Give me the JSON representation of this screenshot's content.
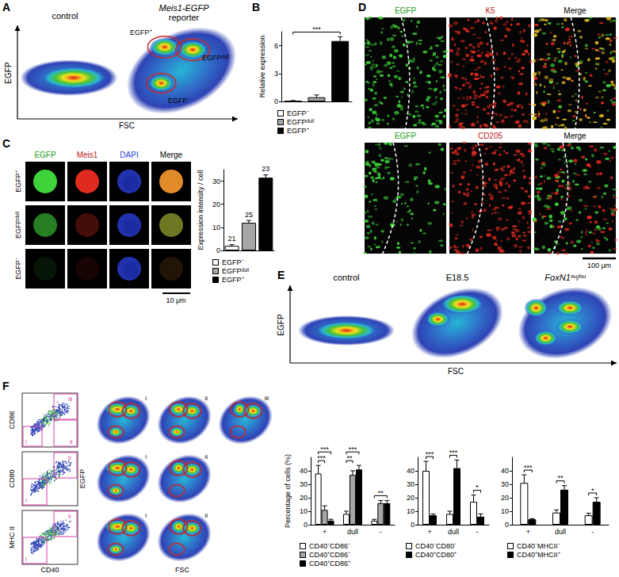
{
  "figure": {
    "panel_labels": [
      "A",
      "B",
      "C",
      "D",
      "E",
      "F"
    ],
    "A": {
      "plots": [
        "control",
        [
          "Meis1-EGFP",
          "reporter"
        ]
      ],
      "gates": [
        "EGFP⁺",
        "EGFPᵈᵘˡˡ",
        "EGFP⁻"
      ],
      "x_label": "FSC",
      "y_label": "EGFP"
    },
    "C": {
      "columns": [
        "EGFP",
        "Meis1",
        "DAPI",
        "Merge"
      ],
      "rows": [
        "EGFP⁺",
        "EGFPᵈᵘˡˡ",
        "EGFP⁻"
      ],
      "scale_bar": "10 μm"
    },
    "D": {
      "rows": [
        [
          "EGFP",
          "K5",
          "Merge"
        ],
        [
          "EGFP",
          "CD205",
          "Merge"
        ]
      ],
      "scale_bar": "100 μm"
    },
    "E": {
      "plots": [
        "control",
        "E18.5",
        "FoxN1ⁿᵘ/ⁿᵘ"
      ],
      "x_label": "FSC",
      "y_label": "EGFP"
    },
    "F": {
      "scatter_y": [
        "CD86",
        "CD80",
        "MHC II"
      ],
      "scatter_x": "CD40",
      "gates": [
        [
          "i",
          "ii",
          "iii"
        ],
        [
          "i",
          "ii"
        ],
        [
          "i",
          "ii"
        ]
      ],
      "x_label": "FSC",
      "y_label": "EGFP"
    }
  },
  "chart_data": [
    {
      "type": "bar",
      "categories": [
        "EGFP⁻",
        "EGFPᵈᵘˡˡ",
        "EGFP⁺"
      ],
      "values": [
        0.05,
        0.45,
        6.5
      ],
      "errors": [
        0.05,
        0.25,
        0.45
      ],
      "colors": [
        "#ffffff",
        "#a6a6a6",
        "#000000"
      ],
      "ylim": [
        0,
        7.5
      ],
      "yticks": [
        0,
        3,
        6
      ],
      "y_label": "Relative expression",
      "tick_labels": "y",
      "legend": "bottom",
      "grid": false,
      "significance": [
        {
          "pair": [
            "EGFP⁻",
            "EGFP⁺"
          ],
          "label": "***"
        }
      ]
    },
    {
      "type": "bar",
      "categories": [
        "EGFP⁻",
        "EGFPᵈᵘˡˡ",
        "EGFP⁺"
      ],
      "values": [
        2,
        12,
        31.5
      ],
      "errors": [
        0.5,
        1,
        1.2
      ],
      "cell_counts": [
        21,
        25,
        23
      ],
      "colors": [
        "#ffffff",
        "#a6a6a6",
        "#000000"
      ],
      "ylim": [
        0,
        35
      ],
      "yticks": [
        0,
        10,
        20,
        30
      ],
      "y_label": "Expression intensity / cell",
      "tick_labels": "y",
      "legend": "bottom",
      "grid": false
    },
    {
      "type": "bar",
      "categories": [
        "+",
        "dull",
        "-"
      ],
      "series": [
        {
          "name": "CD40⁻CD86⁻",
          "color": "#ffffff",
          "values": [
            38,
            8,
            3
          ],
          "errors": [
            6,
            2,
            1
          ]
        },
        {
          "name": "CD40⁺CD86⁻",
          "color": "#a6a6a6",
          "values": [
            11,
            37,
            16
          ],
          "errors": [
            3,
            3,
            2
          ]
        },
        {
          "name": "CD40⁺CD86⁺",
          "color": "#000000",
          "values": [
            3,
            41,
            16
          ],
          "errors": [
            1,
            3,
            2
          ]
        }
      ],
      "ylim": [
        0,
        50
      ],
      "yticks": [
        0,
        10,
        20,
        30,
        40
      ],
      "y_label": "Percentage of cells (%)",
      "legend": "bottom",
      "grid": false,
      "significance": [
        {
          "category": "+",
          "pair": [
            "CD40⁻CD86⁻",
            "CD40⁺CD86⁻"
          ],
          "label": "***"
        },
        {
          "category": "+",
          "pair": [
            "CD40⁻CD86⁻",
            "CD40⁺CD86⁺"
          ],
          "label": "***"
        },
        {
          "category": "dull",
          "pair": [
            "CD40⁻CD86⁻",
            "CD40⁺CD86⁻"
          ],
          "label": "**"
        },
        {
          "category": "dull",
          "pair": [
            "CD40⁻CD86⁻",
            "CD40⁺CD86⁺"
          ],
          "label": "***"
        },
        {
          "category": "-",
          "pair": [
            "CD40⁻CD86⁻",
            "CD40⁺CD86⁺"
          ],
          "label": "**"
        }
      ]
    },
    {
      "type": "bar",
      "categories": [
        "+",
        "dull",
        "-"
      ],
      "series": [
        {
          "name": "CD40⁻CD80⁻",
          "color": "#ffffff",
          "values": [
            40,
            8,
            17
          ],
          "errors": [
            7,
            2,
            5
          ]
        },
        {
          "name": "CD40⁺CD80⁺",
          "color": "#000000",
          "values": [
            7,
            42,
            6
          ],
          "errors": [
            1,
            6,
            2
          ]
        }
      ],
      "ylim": [
        0,
        50
      ],
      "yticks": [
        0,
        10,
        20,
        30,
        40
      ],
      "legend": "bottom",
      "grid": false,
      "significance": [
        {
          "category": "+",
          "pair": [
            "CD40⁻CD80⁻",
            "CD40⁺CD80⁺"
          ],
          "label": "***"
        },
        {
          "category": "dull",
          "pair": [
            "CD40⁻CD80⁻",
            "CD40⁺CD80⁺"
          ],
          "label": "***"
        },
        {
          "category": "-",
          "pair": [
            "CD40⁻CD80⁻",
            "CD40⁺CD80⁺"
          ],
          "label": "*"
        }
      ]
    },
    {
      "type": "bar",
      "categories": [
        "+",
        "dull",
        "-"
      ],
      "series": [
        {
          "name": "CD40⁻MHCII⁻",
          "color": "#ffffff",
          "values": [
            31,
            9,
            7
          ],
          "errors": [
            6,
            2,
            1.5
          ]
        },
        {
          "name": "CD40⁺MHCII⁺",
          "color": "#000000",
          "values": [
            4,
            26,
            17
          ],
          "errors": [
            0.5,
            3,
            3
          ]
        }
      ],
      "ylim": [
        0,
        50
      ],
      "yticks": [
        0,
        10,
        20,
        30,
        40
      ],
      "legend": "bottom",
      "grid": false,
      "significance": [
        {
          "category": "+",
          "pair": [
            "CD40⁻MHCII⁻",
            "CD40⁺MHCII⁺"
          ],
          "label": "***"
        },
        {
          "category": "dull",
          "pair": [
            "CD40⁻MHCII⁻",
            "CD40⁺MHCII⁺"
          ],
          "label": "**"
        },
        {
          "category": "-",
          "pair": [
            "CD40⁻MHCII⁻",
            "CD40⁺MHCII⁺"
          ],
          "label": "*"
        }
      ]
    }
  ]
}
